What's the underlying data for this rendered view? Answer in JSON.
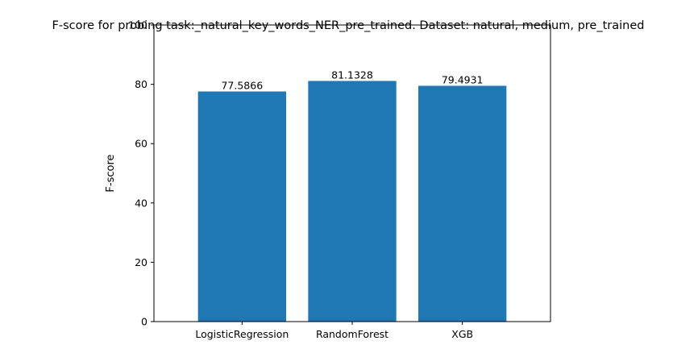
{
  "chart_data": {
    "type": "bar",
    "title": "F-score for probing task:_natural_key_words_NER_pre_trained. Dataset: natural, medium, pre_trained",
    "xlabel": "",
    "ylabel": "F-score",
    "categories": [
      "LogisticRegression",
      "RandomForest",
      "XGB"
    ],
    "values": [
      77.5866,
      81.1328,
      79.4931
    ],
    "value_labels": [
      "77.5866",
      "81.1328",
      "79.4931"
    ],
    "ylim": [
      0,
      100
    ],
    "yticks": [
      0,
      20,
      40,
      60,
      80,
      100
    ],
    "grid": false,
    "legend": "none",
    "bar_color": "#1f77b4"
  }
}
